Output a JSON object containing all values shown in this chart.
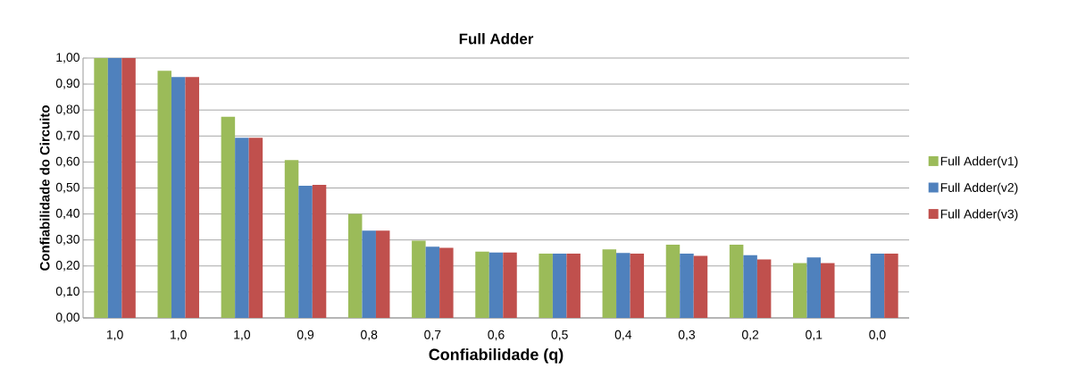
{
  "chart_data": {
    "type": "bar",
    "title": "Full Adder",
    "xlabel": "Confiabilidade (q)",
    "ylabel": "Confiabilidade do Circuito",
    "categories": [
      "1,0",
      "1,0",
      "1,0",
      "0,9",
      "0,8",
      "0,7",
      "0,6",
      "0,5",
      "0,4",
      "0,3",
      "0,2",
      "0,1",
      "0,0"
    ],
    "series": [
      {
        "name": "Full Adder(v1)",
        "color": "#9bbb59",
        "values": [
          1.0,
          0.951,
          0.774,
          0.607,
          0.4,
          0.297,
          0.255,
          0.247,
          0.264,
          0.282,
          0.282,
          0.211,
          0
        ]
      },
      {
        "name": "Full Adder(v2)",
        "color": "#4f81bd",
        "values": [
          1.0,
          0.927,
          0.693,
          0.509,
          0.336,
          0.274,
          0.252,
          0.247,
          0.25,
          0.247,
          0.241,
          0.233,
          0.247
        ]
      },
      {
        "name": "Full Adder(v3)",
        "color": "#c0504d",
        "values": [
          1.0,
          0.927,
          0.693,
          0.512,
          0.336,
          0.27,
          0.252,
          0.247,
          0.247,
          0.239,
          0.225,
          0.211,
          0.247
        ]
      }
    ],
    "ylim": [
      0,
      1
    ],
    "yticks": [
      {
        "value": 0,
        "label": "0,00"
      },
      {
        "value": 0.1,
        "label": "0,10"
      },
      {
        "value": 0.2,
        "label": "0,20"
      },
      {
        "value": 0.3,
        "label": "0,30"
      },
      {
        "value": 0.4,
        "label": "0,40"
      },
      {
        "value": 0.5,
        "label": "0,50"
      },
      {
        "value": 0.6,
        "label": "0,60"
      },
      {
        "value": 0.7,
        "label": "0,70"
      },
      {
        "value": 0.8,
        "label": "0,80"
      },
      {
        "value": 0.9,
        "label": "0,90"
      },
      {
        "value": 1.0,
        "label": "1,00"
      }
    ],
    "grid": "y",
    "legend": "right"
  }
}
